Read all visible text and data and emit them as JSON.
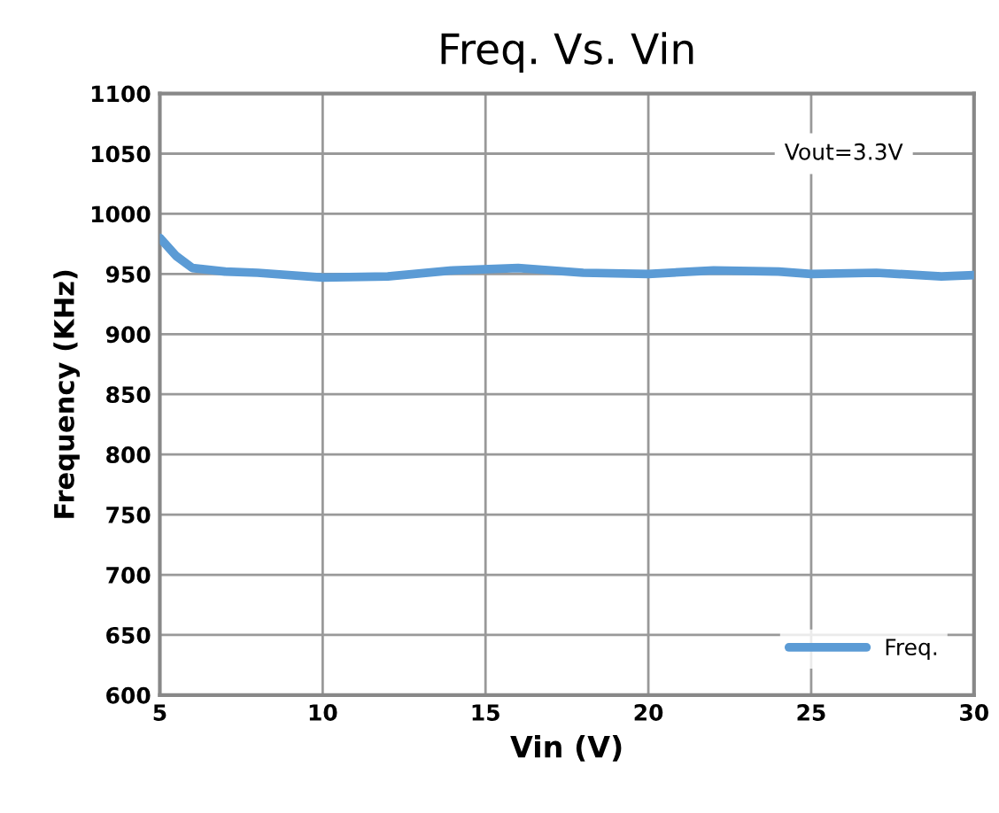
{
  "chart_data": {
    "type": "line",
    "title": "Freq. Vs. Vin",
    "xlabel": "Vin (V)",
    "ylabel": "Frequency (KHz)",
    "series": [
      {
        "name": "Freq.",
        "color": "#5b9bd5",
        "x": [
          5,
          5.5,
          6,
          7,
          8,
          10,
          12,
          14,
          16,
          18,
          20,
          22,
          24,
          25,
          27,
          29,
          30
        ],
        "values": [
          980,
          965,
          955,
          952,
          951,
          947,
          948,
          953,
          955,
          951,
          950,
          953,
          952,
          950,
          951,
          948,
          949
        ]
      }
    ],
    "xlim": [
      5,
      30
    ],
    "xticks": [
      5,
      10,
      15,
      20,
      25,
      30
    ],
    "ylim": [
      600,
      1100
    ],
    "yticks": [
      600,
      650,
      700,
      750,
      800,
      850,
      900,
      950,
      1000,
      1050,
      1100
    ],
    "grid": true,
    "legend": "bottom right",
    "marker": "none",
    "line_style": "solid",
    "annotations": [
      "Vout=3.3V"
    ]
  }
}
